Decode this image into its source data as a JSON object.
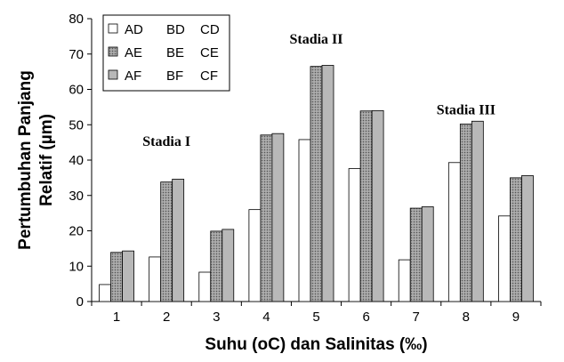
{
  "chart_data": {
    "type": "bar",
    "xlabel": "Suhu (oC) dan Salinitas (‰)",
    "ylabel": [
      "Pertumbuhan Panjang",
      "Relatif (µm)"
    ],
    "ylim": [
      0,
      80
    ],
    "yticks": [
      0,
      10,
      20,
      30,
      40,
      50,
      60,
      70,
      80
    ],
    "categories": [
      "1",
      "2",
      "3",
      "4",
      "5",
      "6",
      "7",
      "8",
      "9"
    ],
    "grid": false,
    "legend_position": "top-left",
    "series": [
      {
        "name": "AD BD CD",
        "label_parts": [
          "AD",
          "BD",
          "CD"
        ],
        "color": "#ffffff",
        "pattern": "none",
        "values": [
          4.8,
          12.6,
          8.3,
          26.0,
          45.8,
          37.6,
          11.8,
          39.3,
          24.2
        ]
      },
      {
        "name": "AE BE CE",
        "label_parts": [
          "AE",
          "BE",
          "CE"
        ],
        "color": "#9a9a9a",
        "pattern": "dotted",
        "values": [
          13.9,
          33.8,
          19.9,
          47.1,
          66.5,
          53.9,
          26.4,
          50.2,
          35.0
        ]
      },
      {
        "name": "AF BF CF",
        "label_parts": [
          "AF",
          "BF",
          "CF"
        ],
        "color": "#b8b8b8",
        "pattern": "none",
        "values": [
          14.3,
          34.6,
          20.4,
          47.5,
          66.8,
          54.0,
          26.8,
          51.0,
          35.6
        ]
      }
    ],
    "annotations": [
      {
        "text": "Stadia I",
        "x": "2",
        "y": 44
      },
      {
        "text": "Stadia II",
        "x": "5",
        "y": 73
      },
      {
        "text": "Stadia III",
        "x": "8",
        "y": 53
      }
    ]
  }
}
